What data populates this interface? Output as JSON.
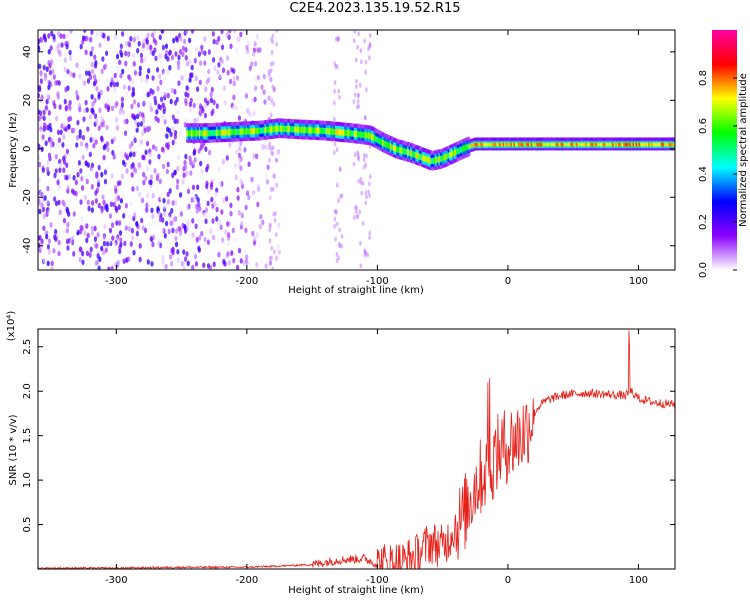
{
  "title": "C2E4.2023.135.19.52.R15",
  "chart_data": [
    {
      "type": "heatmap",
      "xlabel": "Height of straight line (km)",
      "ylabel": "Frequency (Hz)",
      "xlim": [
        -360,
        128
      ],
      "ylim": [
        -50,
        49
      ],
      "x_ticks": [
        -300,
        -200,
        -100,
        0,
        100
      ],
      "x_tick_labels": [
        "-300",
        "-200",
        "-100",
        "0",
        "100"
      ],
      "y_ticks": [
        -40,
        -20,
        0,
        20,
        40
      ],
      "y_tick_labels": [
        "-40",
        "-20",
        "0",
        "20",
        "40"
      ],
      "colorbar": {
        "label": "Normalized spectral amplitude",
        "range": [
          0,
          1
        ],
        "ticks": [
          0.0,
          0.2,
          0.4,
          0.6,
          0.8
        ],
        "tick_labels": [
          "0.0",
          "0.2",
          "0.4",
          "0.6",
          "0.8"
        ],
        "colors": [
          "#ffffff",
          "#8a00ff",
          "#0000ff",
          "#00ffff",
          "#00ff00",
          "#ffff00",
          "#ff0000",
          "#ff00a0"
        ]
      },
      "noise_region": {
        "x_range": [
          -360,
          -175
        ],
        "y_range": [
          -50,
          49
        ],
        "amplitude": 0.25
      },
      "ridge": {
        "x": [
          -245,
          -230,
          -210,
          -190,
          -175,
          -160,
          -140,
          -120,
          -105,
          -95,
          -85,
          -75,
          -65,
          -58,
          -50,
          -40,
          -32,
          -25,
          -15,
          0,
          20,
          50,
          80,
          100,
          128
        ],
        "y": [
          6.5,
          6.5,
          7.0,
          7.5,
          8.5,
          8.0,
          7.5,
          6.5,
          5.5,
          2.5,
          0.0,
          -1.5,
          -3.5,
          -5.0,
          -4.0,
          -1.5,
          0.5,
          2.0,
          2.0,
          2.0,
          2.0,
          2.0,
          2.0,
          2.0,
          2.0
        ]
      }
    },
    {
      "type": "line",
      "xlabel": "Height of straight line (km)",
      "ylabel": "SNR (10 * v/v)",
      "yscale_label": "(x10⁴)",
      "xlim": [
        -360,
        128
      ],
      "ylim": [
        0,
        2.7
      ],
      "x_ticks": [
        -300,
        -200,
        -100,
        0,
        100
      ],
      "x_tick_labels": [
        "-300",
        "-200",
        "-100",
        "0",
        "100"
      ],
      "y_ticks": [
        0.5,
        1.0,
        1.5,
        2.0,
        2.5
      ],
      "y_tick_labels": [
        "0.5",
        "1.0",
        "1.5",
        "2.0",
        "2.5"
      ],
      "series": [
        {
          "color": "#e8201a",
          "x": [
            -360,
            -300,
            -250,
            -200,
            -180,
            -150,
            -130,
            -110,
            -100,
            -80,
            -70,
            -60,
            -50,
            -45,
            -40,
            -35,
            -30,
            -25,
            -20,
            -15,
            -10,
            -5,
            0,
            5,
            10,
            15,
            20,
            25,
            30,
            40,
            50,
            60,
            70,
            80,
            90,
            95,
            100,
            110,
            120,
            128
          ],
          "y": [
            0.01,
            0.01,
            0.02,
            0.02,
            0.03,
            0.05,
            0.1,
            0.12,
            0.05,
            0.08,
            0.15,
            0.3,
            0.25,
            0.35,
            0.5,
            0.55,
            0.75,
            0.95,
            1.05,
            1.15,
            1.25,
            1.35,
            1.4,
            1.45,
            1.5,
            1.6,
            1.75,
            1.85,
            1.9,
            1.95,
            1.97,
            1.98,
            1.97,
            1.96,
            1.95,
            2.0,
            1.92,
            1.88,
            1.86,
            1.85
          ]
        }
      ]
    }
  ]
}
